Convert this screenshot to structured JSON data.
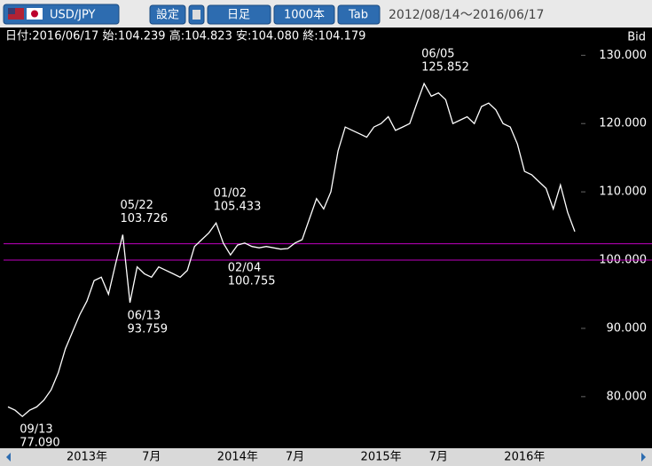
{
  "header": {
    "symbol": "USD/JPY",
    "buttons": [
      "設定",
      "日足",
      "1000本",
      "Tab"
    ],
    "range": "2012/08/14～2016/06/17"
  },
  "info": "日付:2016/06/17 始:104.239 高:104.823 安:104.080 終:104.179",
  "chart_data": {
    "type": "line",
    "axis_title": "Bid",
    "color": "#ffffff",
    "categories": [
      null,
      null,
      null,
      null,
      null,
      null,
      null,
      null,
      null,
      null,
      null,
      "2013年",
      null,
      null,
      null,
      null,
      null,
      null,
      null,
      null,
      "7月",
      null,
      null,
      null,
      null,
      null,
      null,
      null,
      null,
      null,
      null,
      null,
      "2014年",
      null,
      null,
      null,
      null,
      null,
      null,
      null,
      "7月",
      null,
      null,
      null,
      null,
      null,
      null,
      null,
      null,
      null,
      null,
      null,
      "2015年",
      null,
      null,
      null,
      null,
      null,
      null,
      null,
      "7月",
      null,
      null,
      null,
      null,
      null,
      null,
      null,
      null,
      null,
      null,
      null,
      "2016年",
      null,
      null,
      null,
      null,
      null,
      null,
      null
    ],
    "values": [
      78.5,
      78,
      77.09,
      78,
      78.5,
      79.5,
      81,
      83.5,
      87,
      89.5,
      92,
      94,
      97,
      97.5,
      95,
      99.5,
      103.726,
      93.759,
      99,
      98,
      97.5,
      99,
      98.5,
      98,
      97.5,
      98.5,
      102,
      103,
      104,
      105.433,
      102.5,
      100.755,
      102.2,
      102.5,
      102,
      101.8,
      102,
      101.8,
      101.6,
      101.7,
      102.5,
      103,
      106,
      109,
      107.5,
      110,
      116,
      119.5,
      119,
      118.5,
      118,
      119.5,
      120,
      121,
      119,
      119.5,
      120,
      123,
      125.852,
      124,
      124.5,
      123.5,
      120,
      120.5,
      121,
      120,
      122.5,
      123,
      122,
      120,
      119.5,
      117,
      113,
      112.5,
      111.5,
      110.5,
      107.5,
      111,
      107,
      104.179
    ],
    "ylim": [
      72.7,
      134.2
    ],
    "yticks": [
      {
        "value": 80,
        "label": "80.000"
      },
      {
        "value": 90,
        "label": "90.000"
      },
      {
        "value": 100,
        "label": "100.000"
      },
      {
        "value": 110,
        "label": "110.000"
      },
      {
        "value": 120,
        "label": "120.000"
      },
      {
        "value": 130,
        "label": "130.000"
      }
    ],
    "hlines": [
      102.4,
      100
    ],
    "hline_color": "#c000c0",
    "annotations": [
      {
        "date": "09/13",
        "value": 77.09,
        "label": "77.090"
      },
      {
        "date": "05/22",
        "value": 103.726,
        "label": "103.726"
      },
      {
        "date": "06/13",
        "value": 93.759,
        "label": "93.759"
      },
      {
        "date": "01/02",
        "value": 105.433,
        "label": "105.433"
      },
      {
        "date": "02/04",
        "value": 100.755,
        "label": "100.755"
      },
      {
        "date": "06/05",
        "value": 125.852,
        "label": "125.852"
      }
    ]
  }
}
